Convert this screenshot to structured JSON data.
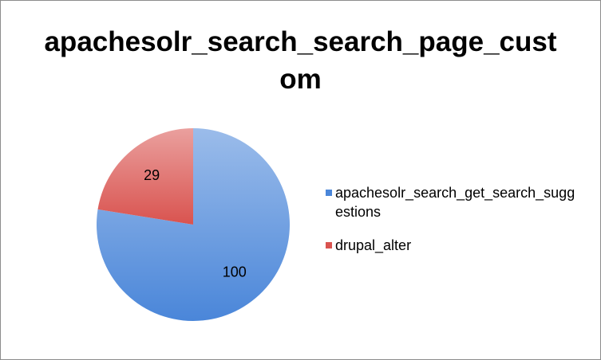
{
  "chart_data": {
    "type": "pie",
    "title_lines": [
      "apachesolr_search_search_page_cust",
      "om"
    ],
    "series": [
      {
        "name_lines": [
          "apachesolr_search_get_search_sugg",
          "estions"
        ],
        "value": 100,
        "color": "#4a86d9"
      },
      {
        "name_lines": [
          "drupal_alter"
        ],
        "value": 29,
        "color": "#d9534f"
      }
    ],
    "legend_position": "right"
  }
}
